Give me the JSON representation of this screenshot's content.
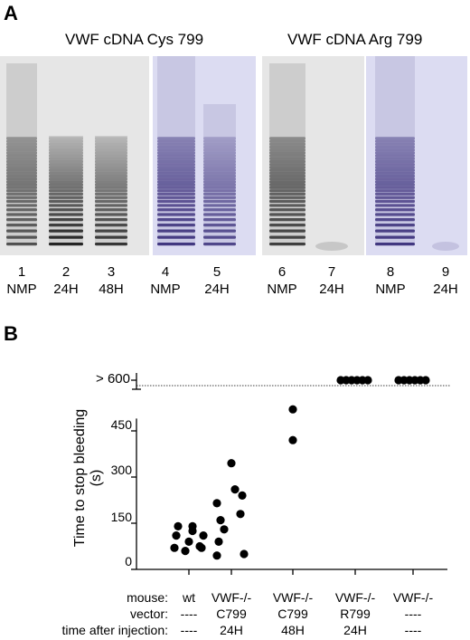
{
  "panel_a": {
    "letter": "A",
    "groups": [
      {
        "title": "VWF cDNA Cys 799"
      },
      {
        "title": "VWF cDNA Arg 799"
      }
    ],
    "lanes": [
      {
        "number": "1",
        "condition": "NMP"
      },
      {
        "number": "2",
        "condition": "24H"
      },
      {
        "number": "3",
        "condition": "48H"
      },
      {
        "number": "4",
        "condition": "NMP"
      },
      {
        "number": "5",
        "condition": "24H"
      },
      {
        "number": "6",
        "condition": "NMP"
      },
      {
        "number": "7",
        "condition": "24H"
      },
      {
        "number": "8",
        "condition": "NMP"
      },
      {
        "number": "9",
        "condition": "24H"
      }
    ],
    "colors": {
      "gray_gel_bg": "#e6e6e6",
      "blue_gel_bg": "#dcdcf2",
      "gray_band": "#1a1a1a",
      "blue_band": "#3a2f7a"
    }
  },
  "panel_b": {
    "letter": "B",
    "above_label": "> 600",
    "row_labels": {
      "mouse": "mouse:",
      "vector": "vector:",
      "time": "time after injection:"
    },
    "categories": [
      {
        "mouse": "wt",
        "vector": "----",
        "time": "----"
      },
      {
        "mouse": "VWF-/-",
        "vector": "C799",
        "time": "24H"
      },
      {
        "mouse": "VWF-/-",
        "vector": "C799",
        "time": "48H"
      },
      {
        "mouse": "VWF-/-",
        "vector": "R799",
        "time": "24H"
      },
      {
        "mouse": "VWF-/-",
        "vector": "----",
        "time": "----"
      }
    ]
  },
  "chart_data": {
    "type": "scatter",
    "ylabel_line1": "Time to stop bleeding",
    "ylabel_line2": "(s)",
    "ylim": [
      0,
      600
    ],
    "yticks": [
      0,
      150,
      300,
      450
    ],
    "categories": [
      "wt",
      "VWF-/- C799 24H",
      "VWF-/- C799 48H",
      "VWF-/- R799 24H",
      "VWF-/- ---- ----"
    ],
    "series": [
      {
        "values": [
          [
            60,
            70,
            70,
            75,
            90,
            110,
            110,
            125,
            140,
            140
          ],
          [
            45,
            50,
            90,
            130,
            160,
            180,
            215,
            240,
            260,
            345
          ],
          [
            420,
            520
          ],
          [
            ">600",
            ">600",
            ">600",
            ">600",
            ">600",
            ">600"
          ],
          [
            ">600",
            ">600",
            ">600",
            ">600",
            ">600",
            ">600"
          ]
        ]
      }
    ]
  }
}
